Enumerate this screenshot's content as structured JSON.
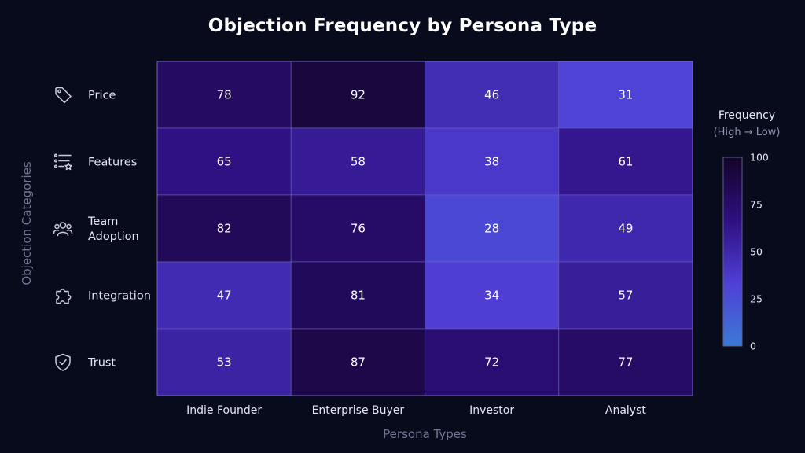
{
  "chart_data": {
    "type": "heatmap",
    "title": "Objection Frequency by Persona Type",
    "xlabel": "Persona Types",
    "ylabel": "Objection Categories",
    "columns": [
      "Indie Founder",
      "Enterprise Buyer",
      "Investor",
      "Analyst"
    ],
    "rows": [
      {
        "label": "Price",
        "label_lines": [
          "Price"
        ],
        "icon": "tag-icon",
        "values": [
          78,
          92,
          46,
          31
        ]
      },
      {
        "label": "Features",
        "label_lines": [
          "Features"
        ],
        "icon": "feature-list-icon",
        "values": [
          65,
          58,
          38,
          61
        ]
      },
      {
        "label": "Team Adoption",
        "label_lines": [
          "Team",
          "Adoption"
        ],
        "icon": "team-icon",
        "values": [
          82,
          76,
          28,
          49
        ]
      },
      {
        "label": "Integration",
        "label_lines": [
          "Integration"
        ],
        "icon": "puzzle-icon",
        "values": [
          47,
          81,
          34,
          57
        ]
      },
      {
        "label": "Trust",
        "label_lines": [
          "Trust"
        ],
        "icon": "shield-check-icon",
        "values": [
          53,
          87,
          72,
          77
        ]
      }
    ],
    "legend": {
      "title": "Frequency",
      "subtitle": "(High → Low)",
      "range": [
        0,
        100
      ],
      "ticks": [
        100,
        75,
        50,
        25,
        0
      ],
      "colors": [
        "#3b7ad6",
        "#4f3fd6",
        "#2e0f80",
        "#130428"
      ]
    }
  }
}
